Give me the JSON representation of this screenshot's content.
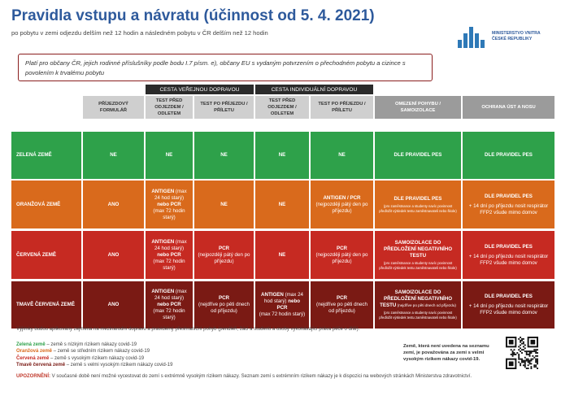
{
  "header": {
    "title": "Pravidla vstupu a návratu (účinnost od 5. 4. 2021)",
    "subtitle": "po pobytu v zemi odjezdu delším než 12 hodin a následném pobytu v ČR delším než 12 hodin"
  },
  "logo": {
    "line1": "MINISTERSTVO VNITRA",
    "line2": "ČESKÉ REPUBLIKY",
    "color": "#2e79b7"
  },
  "notice": {
    "text": "Platí pro občany ČR, jejich rodinné příslušníky podle bodu I.7 písm. e), občany EU s vydaným potvrzením o přechodném pobytu a cizince s povolením k trvalému pobytu"
  },
  "table": {
    "groups": {
      "public": "CESTA VEŘEJNOU DOPRAVOU",
      "individual": "CESTA INDIVIDUÁLNÍ DOPRAVOU"
    },
    "columns": {
      "arrival_form": "PŘÍJEZDOVÝ FORMULÁŘ",
      "public_test_before": "TEST PŘED ODJEZDEM / ODLETEM",
      "public_test_after": "TEST PO PŘÍJEZDU / PŘÍLETU",
      "indiv_test_before": "TEST PŘED ODJEZDEM / ODLETEM",
      "indiv_test_after": "TEST PO PŘÍJEZDU / PŘÍLETU",
      "movement": "OMEZENÍ POHYBU / SAMOIZOLACE",
      "protection": "OCHRANA ÚST A NOSU"
    },
    "rows": [
      {
        "label": "ZELENÁ ZEMĚ",
        "color": "#2ea14a",
        "arrival_form": "NE",
        "public_before": "NE",
        "public_after": "NE",
        "indiv_before": "NE",
        "indiv_after": "NE",
        "movement": "DLE PRAVIDEL PES",
        "movement_note": "",
        "protection": "DLE PRAVIDEL PES",
        "protection_note": ""
      },
      {
        "label": "ORANŽOVÁ ZEMĚ",
        "color": "#d96a1c",
        "arrival_form": "ANO",
        "public_before_bold": "ANTIGEN",
        "public_before_rest": " (max 24 hod starý) ",
        "public_before_bold2": "nebo PCR",
        "public_before_note": "(max 72 hodin starý)",
        "public_after": "NE",
        "indiv_before": "NE",
        "indiv_after": "ANTIGEN / PCR",
        "indiv_after_note": "(nejpozději pátý den po příjezdu)",
        "movement": "DLE PRAVIDEL PES",
        "movement_note": "(pro zaměstnance a studenty navíc povinnost předložit výsledek testu zaměstnavateli nebo škole)",
        "protection": "DLE PRAVIDEL PES",
        "protection_note": "+ 14 dní po příjezdu nosit respirátor FFP2 všude mimo domov"
      },
      {
        "label": "ČERVENÁ ZEMĚ",
        "color": "#c62a22",
        "arrival_form": "ANO",
        "public_before_bold": "ANTIGEN",
        "public_before_rest": " (max 24 hod starý) ",
        "public_before_bold2": "nebo PCR",
        "public_before_note": "(max 72 hodin starý)",
        "public_after": "PCR",
        "public_after_note": "(nejpozději pátý den po příjezdu)",
        "indiv_before": "NE",
        "indiv_after": "PCR",
        "indiv_after_note": "(nejpozději pátý den po příjezdu)",
        "movement": "SAMOIZOLACE DO PŘEDLOŽENÍ NEGATIVNÍHO TESTU",
        "movement_note": "(pro zaměstnance a studenty navíc povinnost předložit výsledek testu zaměstnavateli nebo škole)",
        "protection": "DLE PRAVIDEL PES",
        "protection_note": "+ 14 dní po příjezdu nosit respirátor FFP2 všude mimo domov"
      },
      {
        "label": "TMAVĚ ČERVENÁ ZEMĚ",
        "color": "#7a1a14",
        "arrival_form": "ANO",
        "public_before_bold": "ANTIGEN",
        "public_before_rest": " (max 24 hod starý) ",
        "public_before_bold2": "nebo PCR",
        "public_before_note": "(max 72 hodin starý)",
        "public_after": "PCR",
        "public_after_note": "(nejdříve po pěti dnech od příjezdu)",
        "indiv_before_bold": "ANTIGEN",
        "indiv_before_rest": " (max 24 hod starý) ",
        "indiv_before_bold2": "nebo PCR",
        "indiv_before_note": "(max 72 hodin starý)",
        "indiv_after": "PCR",
        "indiv_after_note": "(nejdříve po pěti dnech od příjezdu)",
        "movement": "SAMOIZOLACE DO PŘEDLOŽENÍ NEGATIVNÍHO TESTU",
        "movement_tail": " (nejdříve po pěti dnech od příjezdu)",
        "movement_note": "(pro zaměstnance a studenty navíc povinnost předložit výsledek testu zaměstnavateli nebo škole)",
        "protection": "DLE PRAVIDEL PES",
        "protection_note": "+ 14 dní po příjezdu nosit respirátor FFP2 všude mimo domov"
      }
    ]
  },
  "footer": {
    "exceptions": "Výjimky budou aplikovány zejména na mezinárodní dopravu a pravidelný přeshraniční pohyb (pendleři, žáci a studenti a osoby vykonávající práva péče o dítě).",
    "legend": [
      {
        "name": "Zelená země",
        "desc": " – země s nízkým rizikem nákazy covid-19",
        "color": "#2ea14a"
      },
      {
        "name": "Oranžová země",
        "desc": " – země se středním rizikem nákazy covid-19",
        "color": "#d96a1c"
      },
      {
        "name": "Červená země",
        "desc": " – země s vysokým rizikem nákazy covid-19",
        "color": "#c62a22"
      },
      {
        "name": "Tmavě červená země",
        "desc": " – země s velmi vysokým rizikem nákazy covid-19",
        "color": "#7a1a14"
      }
    ],
    "unlisted": "Země, která není uvedena na seznamu zemí, je považována za zemi s velmi vysokým rizikem nákazy covid-19.",
    "warning_label": "UPOZORNĚNÍ:",
    "warning_text": " V současné době není možné vycestovat do zemí s extrémně vysokým rizikem nákazy. Seznam zemí s extrémním rizikem nákazy je k dispozici na webových stránkách Ministerstva zdravotnictví."
  }
}
